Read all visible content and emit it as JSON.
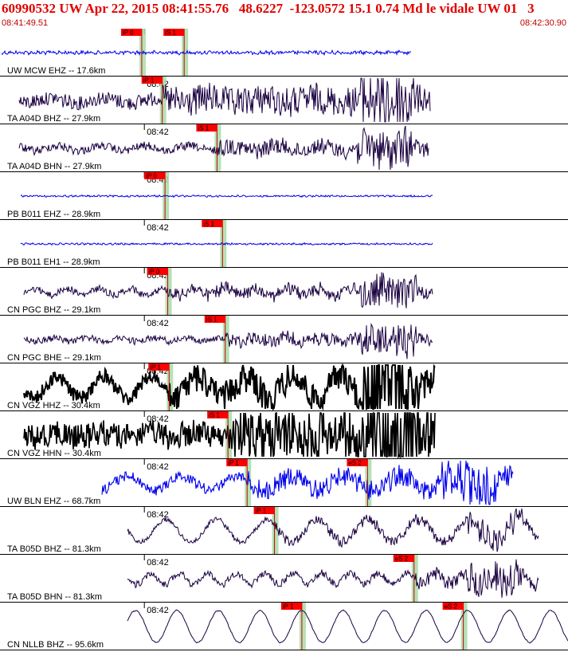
{
  "header": {
    "title": "60990532 UW Apr 22, 2015 08:41:55.76   48.6227  -123.0572 15.1 0.74 Md le vidale UW 01   3",
    "start_time": "08:41:49.51",
    "end_time": "08:42:30.90"
  },
  "colors": {
    "header_text": "#e00000",
    "pick_box": "#ff0000",
    "pick_window": "#a8dca8",
    "trace_blue": "#0000ee",
    "trace_purple": "#1a0040",
    "trace_black": "#000000"
  },
  "chart_data": {
    "type": "line",
    "title": "",
    "time_axis": {
      "start": "08:41:49.51",
      "end": "08:42:30.90",
      "tick_label": "08:42"
    },
    "traces": [
      {
        "label": "UW MCW EHZ -- 17.6km",
        "color": "blue",
        "picks": [
          {
            "label": "iP 0",
            "time": 10.3
          },
          {
            "label": "iS 1",
            "time": 13.4
          }
        ]
      },
      {
        "label": "TA A04D BHZ -- 27.9km",
        "color": "purple",
        "picks": [
          {
            "label": "iP 1",
            "time": 11.8
          }
        ]
      },
      {
        "label": "TA A04D BHN -- 27.9km",
        "color": "purple",
        "picks": [
          {
            "label": "iS 1",
            "time": 15.8
          }
        ]
      },
      {
        "label": "PB B011 EHZ -- 28.9km",
        "color": "blue",
        "picks": [
          {
            "label": "iP 0",
            "time": 12.0
          }
        ]
      },
      {
        "label": "PB B011 EH1 -- 28.9km",
        "color": "blue",
        "picks": [
          {
            "label": "iS 1",
            "time": 16.2
          }
        ]
      },
      {
        "label": "CN PGC BHZ -- 29.1km",
        "color": "purple",
        "picks": [
          {
            "label": "iP 0",
            "time": 12.2
          }
        ]
      },
      {
        "label": "CN PGC BHE -- 29.1km",
        "color": "purple",
        "picks": [
          {
            "label": "iS 1",
            "time": 16.4
          }
        ]
      },
      {
        "label": "CN VGZ HHZ -- 30.4km",
        "color": "black",
        "picks": [
          {
            "label": "iP 1",
            "time": 12.3
          }
        ]
      },
      {
        "label": "CN VGZ HHN -- 30.4km",
        "color": "black",
        "picks": [
          {
            "label": "iS 1",
            "time": 16.6
          }
        ]
      },
      {
        "label": "UW BLN EHZ -- 68.7km",
        "color": "blue",
        "picks": [
          {
            "label": "iP 1",
            "time": 18.0
          },
          {
            "label": "eS 2",
            "time": 26.8
          }
        ]
      },
      {
        "label": "TA B05D BHZ -- 81.3km",
        "color": "purple",
        "picks": [
          {
            "label": "iP 1",
            "time": 20.0
          }
        ]
      },
      {
        "label": "TA B05D BHN -- 81.3km",
        "color": "purple",
        "picks": [
          {
            "label": "eS 2",
            "time": 30.2
          }
        ]
      },
      {
        "label": "CN NLLB BHZ -- 95.6km",
        "color": "purple",
        "picks": [
          {
            "label": "iP 1",
            "time": 22.0
          },
          {
            "label": "eS 2",
            "time": 33.8
          }
        ]
      }
    ]
  }
}
